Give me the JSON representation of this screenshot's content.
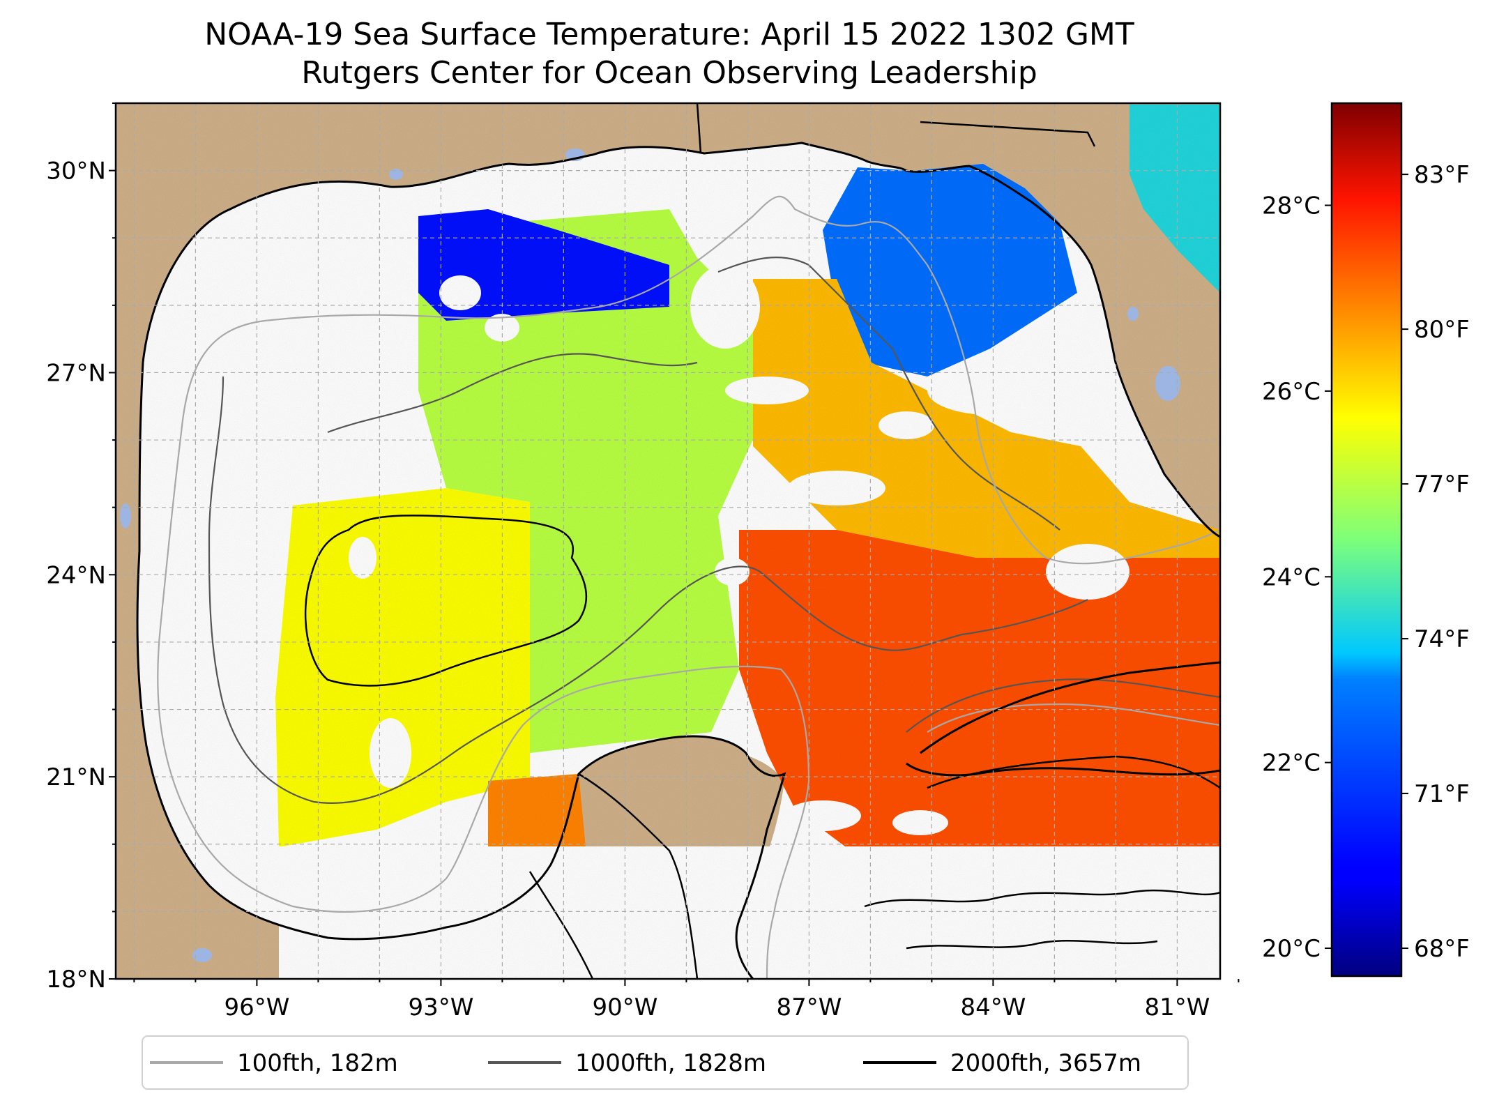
{
  "title": {
    "line1": "NOAA-19 Sea Surface Temperature: April 15 2022 1302 GMT",
    "line2": "Rutgers Center for Ocean Observing Leadership"
  },
  "map": {
    "lat_ticks": [
      "18°N",
      "21°N",
      "24°N",
      "27°N",
      "30°N"
    ],
    "lon_ticks": [
      "96°W",
      "93°W",
      "90°W",
      "87°W",
      "84°W",
      "81°W"
    ],
    "lon_range": [
      -98.3,
      -80.3
    ],
    "lat_range": [
      18.0,
      31.0
    ],
    "colors": {
      "land": "#cfb089",
      "lakes": "#9db5e2",
      "no_data": "#ffffff",
      "grid": "#aaaaaa"
    }
  },
  "colorbar": {
    "celsius_ticks": [
      "20°C",
      "22°C",
      "24°C",
      "26°C",
      "28°C"
    ],
    "fahrenheit_ticks": [
      "68°F",
      "71°F",
      "74°F",
      "77°F",
      "80°F",
      "83°F"
    ],
    "range_c": [
      19.7,
      29.1
    ]
  },
  "legend": {
    "items": [
      {
        "label": "100fth, 182m",
        "color": "#a8a8a8"
      },
      {
        "label": "1000fth, 1828m",
        "color": "#555555"
      },
      {
        "label": "2000fth, 3657m",
        "color": "#000000"
      }
    ]
  }
}
